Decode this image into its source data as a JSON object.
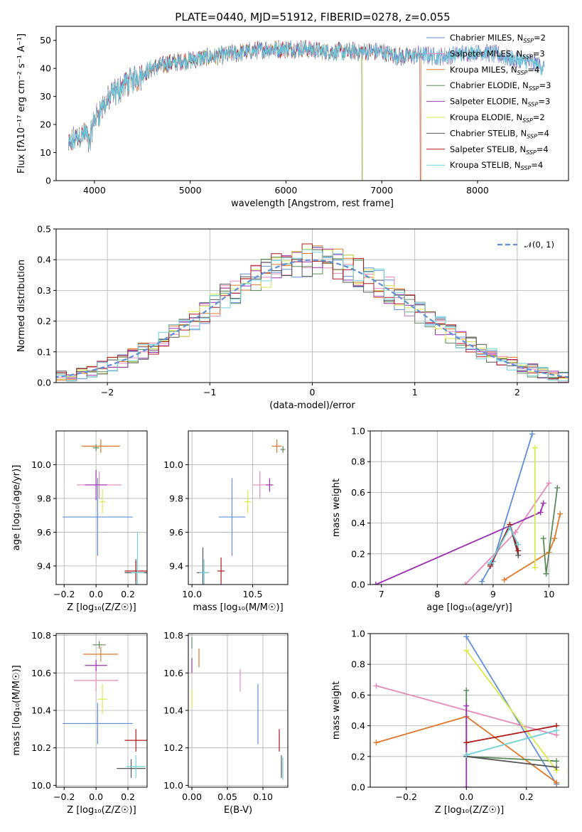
{
  "figure_title": "PLATE=0440, MJD=51912, FIBERID=0278, z=0.055",
  "colors": {
    "Chabrier MILES": "#5f8fd9",
    "Salpeter MILES": "#e68ab8",
    "Kroupa MILES": "#e0782a",
    "Chabrier ELODIE": "#5a8a5a",
    "Salpeter ELODIE": "#9a2fb0",
    "Kroupa ELODIE": "#d8ea4a",
    "Chabrier STELIB": "#555555",
    "Salpeter STELIB": "#b01818",
    "Kroupa STELIB": "#6fd0d8",
    "normal": "#5f8fd9"
  },
  "chart_data": [
    {
      "id": "spectrum",
      "type": "line",
      "title": "PLATE=0440, MJD=51912, FIBERID=0278, z=0.055",
      "xlabel": "wavelength [Angstrom, rest frame]",
      "ylabel": "Flux [fλ10⁻¹⁷ erg cm⁻² s⁻¹ A⁻¹]",
      "xlim": [
        3600,
        8950
      ],
      "ylim": [
        0,
        55
      ],
      "xticks": [
        4000,
        5000,
        6000,
        7000,
        8000
      ],
      "yticks": [
        0,
        10,
        20,
        30,
        40,
        50
      ],
      "grid": false,
      "legend_position": "top-right",
      "legend": [
        "Chabrier MILES, N_SSP=2",
        "Salpeter MILES, N_SSP=3",
        "Kroupa MILES, N_SSP=4",
        "Chabrier ELODIE, N_SSP=3",
        "Salpeter ELODIE, N_SSP=3",
        "Kroupa ELODIE, N_SSP=2",
        "Chabrier STELIB, N_SSP=4",
        "Salpeter STELIB, N_SSP=4",
        "Kroupa STELIB, N_SSP=4"
      ],
      "observed_trend": {
        "x": [
          3730,
          3800,
          3900,
          3950,
          4000,
          4100,
          4200,
          4300,
          4400,
          4500,
          4600,
          4800,
          5000,
          5200,
          5400,
          5600,
          5800,
          6000,
          6200,
          6400,
          6600,
          6800,
          7000,
          7200,
          7400,
          7600,
          7800,
          8000,
          8200,
          8400,
          8600,
          8700
        ],
        "y": [
          12,
          15,
          17,
          14,
          22,
          27,
          31,
          34,
          36,
          38,
          40,
          42,
          43,
          44,
          45,
          46,
          47,
          47,
          47,
          46,
          46,
          46,
          46,
          44,
          45,
          44,
          45,
          46,
          45,
          43,
          42,
          40
        ]
      },
      "model_cutoffs": {
        "Kroupa ELODIE": 6800,
        "Salpeter STELIB": 7400,
        "Kroupa MILES": 7410,
        "Chabrier ELODIE": 6790
      }
    },
    {
      "id": "residual-histogram",
      "type": "histogram",
      "xlabel": "(data-model)/error",
      "ylabel": "Normed distribution",
      "xlim": [
        -2.5,
        2.5
      ],
      "ylim": [
        0,
        0.5
      ],
      "xticks": [
        -2,
        -1,
        0,
        1,
        2
      ],
      "yticks": [
        0.0,
        0.1,
        0.2,
        0.3,
        0.4,
        0.5
      ],
      "grid": true,
      "legend_position": "top-right",
      "legend": [
        "𝒩(0, 1)"
      ],
      "bin_width": 0.1,
      "normal_mean": 0,
      "normal_sigma": 1
    },
    {
      "id": "age-vs-metallicity",
      "type": "scatter",
      "xlabel": "Z [log₁₀(Z/Z☉)]",
      "ylabel": "age  [log₁₀(age/yr)]",
      "xlim": [
        -0.25,
        0.32
      ],
      "ylim": [
        9.29,
        10.2
      ],
      "xticks": [
        -0.2,
        0.0,
        0.2
      ],
      "yticks": [
        9.4,
        9.6,
        9.8,
        10.0
      ],
      "grid": true,
      "points": [
        {
          "model": "Chabrier MILES",
          "x": 0.01,
          "y": 9.69,
          "xerr": 0.22,
          "yerr": 0.23
        },
        {
          "model": "Salpeter MILES",
          "x": 0.02,
          "y": 9.88,
          "xerr": 0.14,
          "yerr": 0.08
        },
        {
          "model": "Kroupa MILES",
          "x": 0.03,
          "y": 10.11,
          "xerr": 0.12,
          "yerr": 0.04
        },
        {
          "model": "Chabrier ELODIE",
          "x": 0.0,
          "y": 10.1,
          "xerr": 0.02,
          "yerr": 0.02
        },
        {
          "model": "Salpeter ELODIE",
          "x": 0.0,
          "y": 9.88,
          "xerr": 0.07,
          "yerr": 0.09
        },
        {
          "model": "Kroupa ELODIE",
          "x": 0.04,
          "y": 9.78,
          "xerr": 0.02,
          "yerr": 0.07
        },
        {
          "model": "Chabrier STELIB",
          "x": 0.25,
          "y": 9.36,
          "xerr": 0.07,
          "yerr": 0.08
        },
        {
          "model": "Salpeter STELIB",
          "x": 0.25,
          "y": 9.37,
          "xerr": 0.07,
          "yerr": 0.06
        },
        {
          "model": "Kroupa STELIB",
          "x": 0.26,
          "y": 9.36,
          "xerr": 0.04,
          "yerr": 0.24
        }
      ]
    },
    {
      "id": "age-vs-mass",
      "type": "scatter",
      "xlabel": "mass [log₁₀(M/M☉)]",
      "ylabel": "",
      "xlim": [
        9.97,
        10.79
      ],
      "ylim": [
        9.29,
        10.2
      ],
      "xticks": [
        10.0,
        10.5
      ],
      "yticks": [
        9.4,
        9.6,
        9.8,
        10.0
      ],
      "grid": true,
      "points": [
        {
          "model": "Chabrier MILES",
          "x": 10.33,
          "y": 9.69,
          "xerr": 0.11,
          "yerr": 0.23
        },
        {
          "model": "Salpeter MILES",
          "x": 10.56,
          "y": 9.88,
          "xerr": 0.06,
          "yerr": 0.08
        },
        {
          "model": "Kroupa MILES",
          "x": 10.7,
          "y": 10.11,
          "xerr": 0.04,
          "yerr": 0.04
        },
        {
          "model": "Chabrier ELODIE",
          "x": 10.75,
          "y": 10.09,
          "xerr": 0.02,
          "yerr": 0.02
        },
        {
          "model": "Salpeter ELODIE",
          "x": 10.64,
          "y": 9.88,
          "xerr": 0.03,
          "yerr": 0.04
        },
        {
          "model": "Kroupa ELODIE",
          "x": 10.46,
          "y": 9.78,
          "xerr": 0.03,
          "yerr": 0.07
        },
        {
          "model": "Chabrier STELIB",
          "x": 10.09,
          "y": 9.36,
          "xerr": 0.05,
          "yerr": 0.15
        },
        {
          "model": "Salpeter STELIB",
          "x": 10.24,
          "y": 9.37,
          "xerr": 0.03,
          "yerr": 0.08
        },
        {
          "model": "Kroupa STELIB",
          "x": 10.1,
          "y": 9.36,
          "xerr": 0.04,
          "yerr": 0.08
        }
      ]
    },
    {
      "id": "mass-weight-vs-age",
      "type": "line",
      "xlabel": "age  [log₁₀(age/yr)]",
      "ylabel": "mass weight",
      "xlim": [
        6.8,
        10.35
      ],
      "ylim": [
        0,
        1
      ],
      "xticks": [
        7,
        8,
        9,
        10
      ],
      "yticks": [
        0.0,
        0.2,
        0.4,
        0.6,
        0.8,
        1.0
      ],
      "grid": true,
      "series": [
        {
          "model": "Chabrier MILES",
          "x": [
            8.8,
            9.0,
            9.7
          ],
          "y": [
            0.02,
            0.15,
            0.98
          ]
        },
        {
          "model": "Salpeter MILES",
          "x": [
            8.5,
            9.4,
            10.0
          ],
          "y": [
            0.0,
            0.34,
            0.66
          ]
        },
        {
          "model": "Kroupa MILES",
          "x": [
            9.2,
            10.0,
            10.1,
            10.2
          ],
          "y": [
            0.03,
            0.21,
            0.3,
            0.46
          ]
        },
        {
          "model": "Chabrier ELODIE",
          "x": [
            9.9,
            9.95,
            10.15
          ],
          "y": [
            0.3,
            0.07,
            0.63
          ]
        },
        {
          "model": "Salpeter ELODIE",
          "x": [
            6.9,
            9.85,
            9.9
          ],
          "y": [
            0.0,
            0.47,
            0.53
          ]
        },
        {
          "model": "Kroupa ELODIE",
          "x": [
            9.75,
            9.75
          ],
          "y": [
            0.11,
            0.89
          ]
        },
        {
          "model": "Chabrier STELIB",
          "x": [
            8.95,
            9.3,
            9.45
          ],
          "y": [
            0.13,
            0.39,
            0.19
          ]
        },
        {
          "model": "Salpeter STELIB",
          "x": [
            8.95,
            9.3,
            9.45
          ],
          "y": [
            0.12,
            0.39,
            0.22
          ]
        },
        {
          "model": "Kroupa STELIB",
          "x": [
            8.95,
            9.3,
            9.45
          ],
          "y": [
            0.14,
            0.37,
            0.26
          ]
        }
      ]
    },
    {
      "id": "mass-vs-metallicity",
      "type": "scatter",
      "xlabel": "Z [log₁₀(Z/Z☉)]",
      "ylabel": "mass [log₁₀(M/M☉)]",
      "xlim": [
        -0.25,
        0.32
      ],
      "ylim": [
        9.99,
        10.81
      ],
      "xticks": [
        -0.2,
        0.0,
        0.2
      ],
      "yticks": [
        10.0,
        10.2,
        10.4,
        10.6,
        10.8
      ],
      "grid": true,
      "points": [
        {
          "model": "Chabrier MILES",
          "x": 0.01,
          "y": 10.33,
          "xerr": 0.22,
          "yerr": 0.11
        },
        {
          "model": "Salpeter MILES",
          "x": 0.0,
          "y": 10.56,
          "xerr": 0.14,
          "yerr": 0.06
        },
        {
          "model": "Kroupa MILES",
          "x": 0.03,
          "y": 10.7,
          "xerr": 0.11,
          "yerr": 0.04
        },
        {
          "model": "Chabrier ELODIE",
          "x": 0.02,
          "y": 10.75,
          "xerr": 0.04,
          "yerr": 0.02
        },
        {
          "model": "Salpeter ELODIE",
          "x": 0.0,
          "y": 10.64,
          "xerr": 0.07,
          "yerr": 0.03
        },
        {
          "model": "Kroupa ELODIE",
          "x": 0.04,
          "y": 10.46,
          "xerr": 0.03,
          "yerr": 0.08
        },
        {
          "model": "Chabrier STELIB",
          "x": 0.22,
          "y": 10.09,
          "xerr": 0.09,
          "yerr": 0.05
        },
        {
          "model": "Salpeter STELIB",
          "x": 0.25,
          "y": 10.24,
          "xerr": 0.07,
          "yerr": 0.06
        },
        {
          "model": "Kroupa STELIB",
          "x": 0.25,
          "y": 10.1,
          "xerr": 0.06,
          "yerr": 0.06
        }
      ]
    },
    {
      "id": "mass-vs-extinction",
      "type": "scatter",
      "xlabel": "E(B-V)",
      "ylabel": "",
      "xlim": [
        -0.005,
        0.135
      ],
      "ylim": [
        9.99,
        10.81
      ],
      "xticks": [
        0.0,
        0.05,
        0.1
      ],
      "yticks": [
        10.0,
        10.2,
        10.4,
        10.6,
        10.8
      ],
      "grid": true,
      "points": [
        {
          "model": "Chabrier MILES",
          "x": 0.093,
          "y": 10.38,
          "xerr": 0.0,
          "yerr": 0.16
        },
        {
          "model": "Salpeter MILES",
          "x": 0.068,
          "y": 10.56,
          "xerr": 0.0,
          "yerr": 0.06
        },
        {
          "model": "Kroupa MILES",
          "x": 0.01,
          "y": 10.68,
          "xerr": 0.0,
          "yerr": 0.05
        },
        {
          "model": "Chabrier ELODIE",
          "x": 0.0,
          "y": 10.76,
          "xerr": 0.0,
          "yerr": 0.03
        },
        {
          "model": "Salpeter ELODIE",
          "x": 0.0,
          "y": 10.64,
          "xerr": 0.0,
          "yerr": 0.04
        },
        {
          "model": "Kroupa ELODIE",
          "x": 0.0,
          "y": 10.46,
          "xerr": 0.0,
          "yerr": 0.05
        },
        {
          "model": "Chabrier STELIB",
          "x": 0.126,
          "y": 10.1,
          "xerr": 0.0,
          "yerr": 0.06
        },
        {
          "model": "Salpeter STELIB",
          "x": 0.123,
          "y": 10.24,
          "xerr": 0.0,
          "yerr": 0.06
        },
        {
          "model": "Kroupa STELIB",
          "x": 0.128,
          "y": 10.09,
          "xerr": 0.0,
          "yerr": 0.06
        }
      ]
    },
    {
      "id": "mass-weight-vs-metallicity",
      "type": "line",
      "xlabel": "Z [log₁₀(Z/Z☉)]",
      "ylabel": "mass weight",
      "xlim": [
        -0.32,
        0.34
      ],
      "ylim": [
        0,
        1
      ],
      "xticks": [
        -0.2,
        0.0,
        0.2
      ],
      "yticks": [
        0.0,
        0.2,
        0.4,
        0.6,
        0.8,
        1.0
      ],
      "grid": true,
      "series": [
        {
          "model": "Chabrier MILES",
          "x": [
            0.0,
            0.3
          ],
          "y": [
            0.98,
            0.02
          ]
        },
        {
          "model": "Salpeter MILES",
          "x": [
            -0.3,
            0.3
          ],
          "y": [
            0.66,
            0.34
          ]
        },
        {
          "model": "Kroupa MILES",
          "x": [
            -0.3,
            0.0,
            0.3
          ],
          "y": [
            0.29,
            0.46,
            0.03
          ]
        },
        {
          "model": "Chabrier ELODIE",
          "x": [
            0.0,
            0.0,
            0.3
          ],
          "y": [
            0.63,
            0.2,
            0.17
          ]
        },
        {
          "model": "Salpeter ELODIE",
          "x": [
            0.0,
            0.0
          ],
          "y": [
            0.0,
            0.53
          ]
        },
        {
          "model": "Kroupa ELODIE",
          "x": [
            0.0,
            0.3
          ],
          "y": [
            0.89,
            0.11
          ]
        },
        {
          "model": "Chabrier STELIB",
          "x": [
            0.0,
            0.3
          ],
          "y": [
            0.2,
            0.13
          ]
        },
        {
          "model": "Salpeter STELIB",
          "x": [
            0.0,
            0.3
          ],
          "y": [
            0.29,
            0.4
          ]
        },
        {
          "model": "Kroupa STELIB",
          "x": [
            0.0,
            0.3
          ],
          "y": [
            0.21,
            0.37
          ]
        }
      ]
    }
  ]
}
